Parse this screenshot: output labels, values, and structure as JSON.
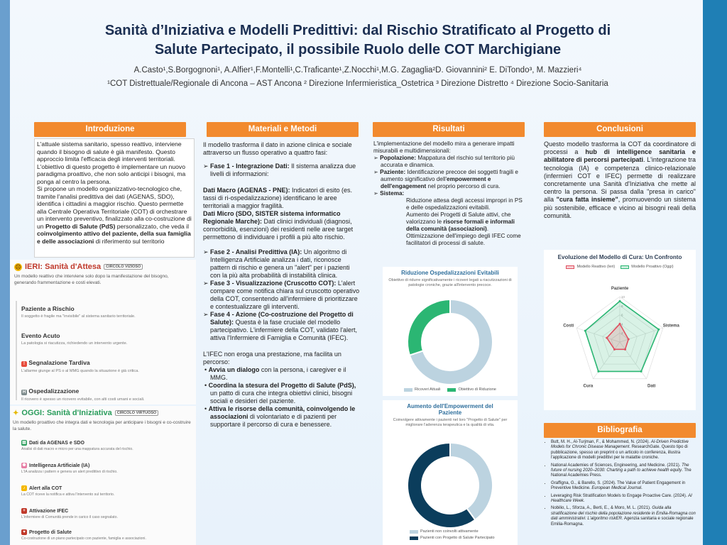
{
  "title_line1": "Sanità d’Iniziativa e Modelli Predittivi: dal Rischio Stratificato al Progetto di",
  "title_line2": "Salute Partecipato, il possibile Ruolo delle COT Marchigiane",
  "authors": "A.Casto¹,S.Borgognoni¹, A.Alfier¹,F.Montelli¹,C.Traficante¹,Z.Nocchi¹,M.G. Zagaglia²D. Giovannini² E. DiTondo³, M. Mazzieri⁴",
  "affiliations": "¹COT  Distrettuale/Regionale di Ancona – AST Ancona ² Direzione Infermieristica_Ostetrica ³ Direzione Distretto  ⁴ Direzione Socio-Sanitaria",
  "sections": {
    "intro": "Introduzione",
    "methods": "Materiali e Metodi",
    "results": "Risultati",
    "conclusions": "Conclusioni",
    "bibliography": "Bibliografia"
  },
  "intro": {
    "p1": "L'attuale sistema sanitario, spesso reattivo, interviene quando il bisogno di salute è già manifesto. Questo approccio limita l'efficacia degli interventi territoriali. L'obiettivo di questo progetto è implementare un nuovo paradigma proattivo, che non solo anticipi i bisogni, ma ponga al centro la persona.",
    "p2a": "Si propone un modello organizzativo-tecnologico che, tramite l'analisi predittiva dei dati (AGENAS, SDO), identifica i cittadini a maggior rischio. Questo permette alla Centrale Operativa Territoriale (COT) di orchestrare un intervento preventivo, finalizzato alla co-costruzione di un ",
    "p2b": "Progetto di Salute (PdS)",
    "p2c": " personalizzato, che veda il ",
    "p2d": "coinvolgimento attivo del paziente, della sua famiglia e delle associazioni",
    "p2e": " di riferimento sul territorio"
  },
  "ieri": {
    "title": "IERI: Sanità d'Attesa",
    "badge": "CIRCOLO VIZIOSO",
    "desc": "Un modello reattivo che interviene solo dopo la manifestazione del bisogno, generando frammentazione e costi elevati.",
    "steps": [
      {
        "title": "Paziente a Rischio",
        "desc": "Il soggetto è fragile ma \"invisibile\" al sistema sanitario territoriale."
      },
      {
        "title": "Evento Acuto",
        "desc": "La patologia si riacutizza, richiedendo un intervento urgente."
      },
      {
        "title": "Segnalazione Tardiva",
        "desc": "L'allarme giunge al PS o al MMG quando la situazione è già critica."
      },
      {
        "title": "Ospedalizzazione",
        "desc": "Il ricovero è spesso un ricovero evitabile, con alti costi umani e sociali."
      }
    ]
  },
  "oggi": {
    "title": "OGGI: Sanità d'Iniziativa",
    "badge": "CIRCOLO VIRTUOSO",
    "desc": "Un modello proattivo che integra dati e tecnologia per anticipare i bisogni e co-costruire la salute.",
    "items": [
      {
        "title": "Dati da AGENAS e SDO",
        "desc": "Analisi di dati macro e micro per una mappatura accurata del rischio."
      },
      {
        "title": "Intelligenza Artificiale (IA)",
        "desc": "L'IA analizza i pattern e genera un alert predittivo di rischio."
      },
      {
        "title": "Alert alla COT",
        "desc": "La COT riceve la notifica e attiva l'intervento sul territorio."
      },
      {
        "title": "Attivazione IFEC",
        "desc": "L'infermiere di Comunità prende in carico il caso segnalato."
      },
      {
        "title": "Progetto di Salute",
        "desc": "Co-costruzione di un piano partecipato con paziente, famiglia e associazioni."
      }
    ]
  },
  "methods": {
    "intro": "Il modello trasforma il dato in azione clinica e sociale attraverso un flusso operativo a quattro fasi:",
    "f1_title": "Fase 1 - Integrazione Dati:",
    "f1_text": " Il sistema analizza due livelli di informazioni:",
    "macro_title": "Dati Macro (AGENAS - PNE):",
    "macro_text": " Indicatori di esito (es. tassi di ri-ospedalizzazione) identificano le aree territoriali a maggior fragilità.",
    "micro_title": "Dati Micro (SDO, SISTER sistema informatico Regionale Marche):",
    "micro_text": " Dati clinici individuali (diagnosi, comorbidità, esenzioni) dei residenti nelle aree target permettono di individuare i profili a più alto rischio.",
    "f2_title": "Fase 2 - Analisi Predittiva (IA):",
    "f2_text": " Un algoritmo di Intelligenza Artificiale analizza i dati, riconosce pattern di rischio e genera un \"alert\" per i pazienti con la più alta probabilità di instabilità clinica.",
    "f3_title": "Fase 3 - Visualizzazione (Cruscotto COT):",
    "f3_text": " L'alert compare come notifica chiara sul cruscotto operativo della COT, consentendo all'infermiere di prioritizzare e contestualizzare gli interventi.",
    "f4_title": "Fase 4 - Azione (Co-costruzione del Progetto di Salute):",
    "f4_text": " Questa è la fase cruciale del modello partecipativo. L'infermiere della COT, validato l'alert, attiva l'Infermiere di Famiglia e Comunità (IFEC).",
    "ifec": "L'IFEC non eroga una prestazione, ma facilita un percorso:",
    "b1_title": "Avvia un dialogo",
    "b1_text": " con la persona, i caregiver e il MMG.",
    "b2_title": "Coordina la stesura del Progetto di Salute (PdS),",
    "b2_text": " un patto di cura che integra obiettivi clinici, bisogni sociali e desideri del paziente.",
    "b3_title": "Attiva le risorse della comunità, coinvolgendo le associazioni",
    "b3_text": " di volontariato e di pazienti per supportare il percorso di cura e benessere."
  },
  "results": {
    "intro": "L'implementazione del modello mira a generare impatti misurabili e multidimensionali:",
    "pop_title": "Popolazione:",
    "pop_text": " Mappatura del rischio sul territorio più accurata e dinamica.",
    "paz_title": "Paziente:",
    "paz_text": " Identificazione precoce dei soggetti fragili e aumento significativo dell'",
    "paz_bold": "empowerment e dell'engagement",
    "paz_text2": " nel proprio percorso di cura.",
    "sys_title": "Sistema:",
    "sys_text1": "Riduzione attesa degli accessi impropri in PS e delle ospedalizzazioni evitabili.",
    "sys_text2a": "Aumento dei Progetti di Salute attivi, che valorizzano le ",
    "sys_text2b": "risorse formali e informali della comunità (associazioni)",
    "sys_text2c": ".",
    "sys_text3": "Ottimizzazione dell'impiego degli IFEC come facilitatori di processi di salute."
  },
  "conclusions": {
    "a": "Questo modello trasforma la COT da coordinatore di processi a ",
    "b": "hub di intelligence sanitaria e abilitatore di percorsi partecipati",
    "c": ". L'integrazione tra tecnologia (IA) e competenza clinico-relazionale (infermieri COT e IFEC) permette di realizzare concretamente una Sanità d'Iniziativa che mette al centro la persona. Si passa dalla \"presa in carico\" alla ",
    "d": "\"cura fatta insieme\"",
    "e": ", promuovendo un sistema più sostenibile, efficace e vicino ai bisogni reali della comunità."
  },
  "bibliography": [
    {
      "a": "Butt, M. H., Al-Turjman, F., & Mohammed, N. (2024). ",
      "i": "AI-Driven Predictive Models for Chronic Disease Management",
      "b": ". ResearchGate. Questo tipo di pubblicazione, spesso un preprint o un articolo in conferenza, illustra l'applicazione di modelli predittivi per le malattie croniche."
    },
    {
      "a": "National Academies of Sciences, Engineering, and Medicine. (2021). ",
      "i": "The future of nursing 2020–2030: Charting a path to achieve health equity",
      "b": ". The National Academies Press."
    },
    {
      "a": "Graffigna, G., & Barello, S. (2024). The Value of Patient Engagement in Preventive Medicine. ",
      "i": "European Medical Journal",
      "b": "."
    },
    {
      "a": "Leveraging Risk Stratification Models to Engage Proactive Care. (2024). ",
      "i": "AI Healthcare Week",
      "b": "."
    },
    {
      "a": "Nobilio, L., Sforza, A., Berti, E., & Moro, M. L. (2021). ",
      "i": "Guida alla stratificazione del rischio della popolazione residente in Emilia-Romagna con dati amministrativi: L'algoritmo riskER",
      "b": ". Agenzia sanitaria e sociale regionale Emilia-Romagna."
    }
  ],
  "chart_data": [
    {
      "type": "pie",
      "title": "Riduzione Ospedalizzazioni Evitabili",
      "subtitle": "Obiettivo di ridurre significativamente i ricoveri legati a riacutizzazioni di patologie croniche, grazie all'intervento precoce.",
      "labels": [
        "Ricoveri Attuali",
        "Obiettivo di Riduzione"
      ],
      "values": [
        70,
        30
      ],
      "colors": [
        "#bcd3e0",
        "#2bb673"
      ]
    },
    {
      "type": "pie",
      "title": "Aumento dell'Empowerment del Paziente",
      "subtitle": "Coinvolgere attivamente i pazienti nel loro \"Progetto di Salute\" per migliorare l'aderenza terapeutica e la qualità di vita.",
      "labels": [
        "Pazienti non coinvolti attivamente",
        "Pazienti con Progetto di Salute Partecipato"
      ],
      "values": [
        40,
        60
      ],
      "colors": [
        "#bcd3e0",
        "#0b3d5c"
      ]
    },
    {
      "type": "radar",
      "title": "Evoluzione del Modello di Cura: Un Confronto",
      "axes": [
        "Paziente",
        "Sistema",
        "Dati",
        "Cura",
        "Costi"
      ],
      "rmax": 10,
      "ticks": [
        "10",
        "8",
        "6",
        "4",
        "2"
      ],
      "series": [
        {
          "name": "Modello Reattivo (Ieri)",
          "values": [
            4,
            2,
            2,
            2,
            3
          ],
          "color": "#e05060"
        },
        {
          "name": "Modello Proattivo (Oggi)",
          "values": [
            9,
            9,
            8,
            8,
            8
          ],
          "color": "#2bb673"
        }
      ]
    }
  ]
}
